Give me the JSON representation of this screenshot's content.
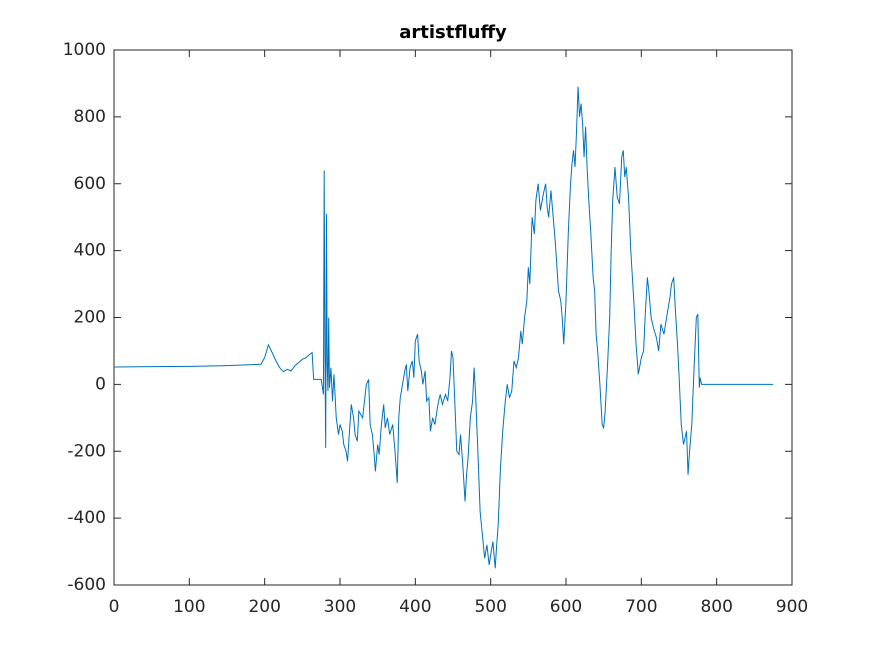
{
  "chart_data": {
    "type": "line",
    "title": "artistfluffy",
    "x": [
      1,
      50,
      100,
      150,
      195,
      200,
      205,
      210,
      215,
      220,
      225,
      230,
      235,
      240,
      245,
      250,
      255,
      260,
      263,
      265,
      270,
      275,
      278,
      279,
      280,
      281,
      282,
      283,
      284,
      285,
      286,
      288,
      290,
      292,
      295,
      298,
      300,
      303,
      305,
      308,
      310,
      312,
      315,
      318,
      320,
      323,
      325,
      330,
      335,
      338,
      340,
      343,
      345,
      347,
      350,
      352,
      355,
      358,
      360,
      363,
      366,
      370,
      373,
      376,
      378,
      380,
      383,
      386,
      388,
      390,
      393,
      396,
      398,
      400,
      403,
      405,
      408,
      410,
      413,
      415,
      418,
      420,
      423,
      426,
      430,
      433,
      436,
      440,
      443,
      446,
      448,
      450,
      452,
      455,
      458,
      460,
      463,
      466,
      468,
      470,
      473,
      476,
      478,
      480,
      483,
      486,
      489,
      492,
      495,
      498,
      500,
      503,
      506,
      508,
      510,
      513,
      516,
      519,
      522,
      525,
      528,
      531,
      534,
      537,
      540,
      542,
      545,
      548,
      550,
      552,
      555,
      558,
      560,
      563,
      566,
      570,
      573,
      575,
      577,
      580,
      583,
      586,
      590,
      593,
      595,
      597,
      600,
      603,
      606,
      608,
      610,
      612,
      614,
      616,
      618,
      620,
      622,
      624,
      626,
      628,
      630,
      633,
      636,
      638,
      640,
      642,
      645,
      648,
      650,
      652,
      655,
      658,
      660,
      662,
      665,
      668,
      671,
      674,
      676,
      678,
      680,
      683,
      686,
      690,
      693,
      696,
      700,
      703,
      705,
      708,
      710,
      713,
      716,
      720,
      723,
      726,
      730,
      735,
      738,
      740,
      743,
      745,
      748,
      750,
      753,
      756,
      760,
      762,
      764,
      767,
      770,
      773,
      775,
      777,
      778,
      780,
      875
    ],
    "series": [
      {
        "color": "#0072bd",
        "values": [
          52,
          53,
          54,
          56,
          60,
          80,
          118,
          95,
          70,
          50,
          38,
          45,
          40,
          55,
          65,
          75,
          80,
          90,
          95,
          15,
          15,
          15,
          -30,
          640,
          100,
          -190,
          510,
          60,
          -20,
          200,
          -10,
          50,
          -50,
          30,
          -100,
          -150,
          -120,
          -140,
          -180,
          -200,
          -230,
          -160,
          -60,
          -100,
          -150,
          -170,
          -80,
          -100,
          0,
          15,
          -120,
          -150,
          -200,
          -260,
          -180,
          -210,
          -120,
          -60,
          -130,
          -100,
          -150,
          -120,
          -200,
          -295,
          -100,
          -40,
          0,
          40,
          60,
          -20,
          50,
          70,
          20,
          130,
          150,
          70,
          40,
          0,
          40,
          -50,
          -40,
          -140,
          -100,
          -120,
          -60,
          -30,
          -60,
          -30,
          -50,
          20,
          100,
          80,
          -30,
          -200,
          -210,
          -150,
          -240,
          -350,
          -270,
          -220,
          -100,
          -50,
          50,
          -30,
          -200,
          -380,
          -450,
          -520,
          -480,
          -540,
          -510,
          -470,
          -550,
          -480,
          -420,
          -250,
          -140,
          -60,
          0,
          -40,
          -20,
          70,
          50,
          80,
          160,
          120,
          200,
          250,
          350,
          300,
          500,
          450,
          550,
          600,
          520,
          570,
          600,
          530,
          500,
          580,
          500,
          420,
          280,
          250,
          200,
          120,
          250,
          450,
          600,
          660,
          700,
          650,
          760,
          890,
          800,
          840,
          780,
          680,
          770,
          650,
          560,
          450,
          320,
          280,
          150,
          100,
          0,
          -120,
          -130,
          -80,
          50,
          200,
          400,
          550,
          650,
          560,
          540,
          680,
          700,
          620,
          650,
          560,
          400,
          250,
          120,
          30,
          80,
          100,
          200,
          320,
          280,
          200,
          170,
          140,
          100,
          180,
          150,
          220,
          260,
          300,
          320,
          230,
          120,
          30,
          -120,
          -180,
          -140,
          -270,
          -200,
          -120,
          50,
          200,
          210,
          -10,
          20,
          0,
          0
        ]
      }
    ],
    "xlim": [
      0,
      900
    ],
    "xticks": [
      0,
      100,
      200,
      300,
      400,
      500,
      600,
      700,
      800,
      900
    ],
    "ylim": [
      -600,
      1000
    ],
    "yticks": [
      -600,
      -400,
      -200,
      0,
      200,
      400,
      600,
      800,
      1000
    ]
  }
}
